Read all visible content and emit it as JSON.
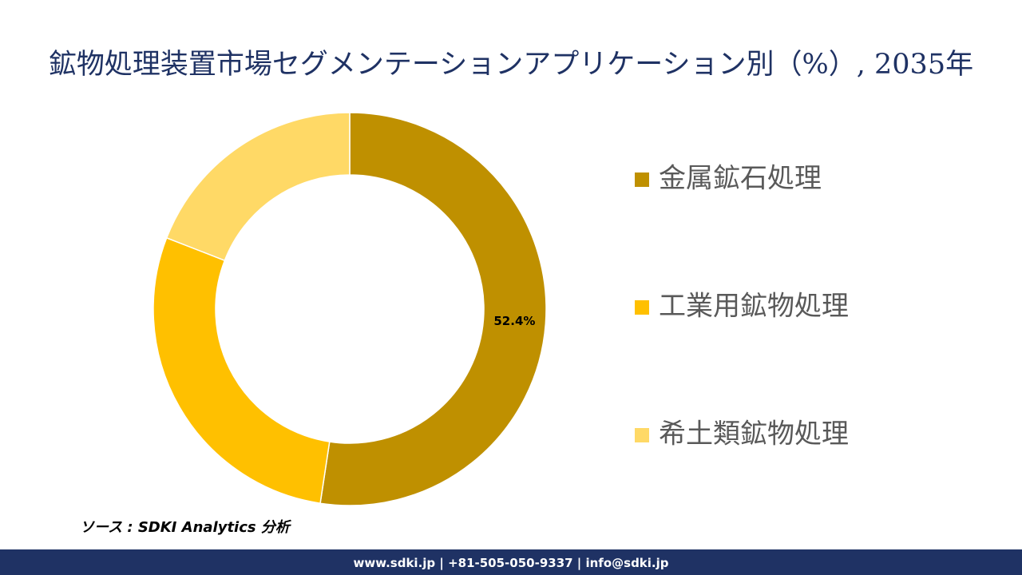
{
  "chart_data": {
    "type": "donut",
    "title": "鉱物処理装置市場セグメンテーションアプリケーション別（%）, 2035年",
    "categories": [
      "金属鉱石処理",
      "工業用鉱物処理",
      "希土類鉱物処理"
    ],
    "values": [
      52.4,
      28.5,
      19.1
    ],
    "value_labels": [
      "52.4%",
      null,
      null
    ],
    "colors": [
      "#bf9000",
      "#ffc000",
      "#ffd966"
    ],
    "legend": "right"
  },
  "source": "ソース : SDKI Analytics 分析",
  "footer": "www.sdki.jp | +81-505-050-9337 | info@sdki.jp"
}
